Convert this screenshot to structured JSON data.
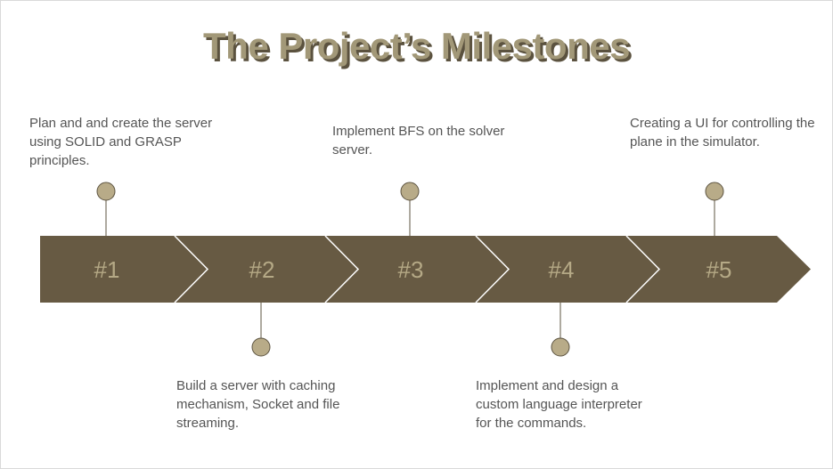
{
  "title": "The Project’s Milestones",
  "colors": {
    "arrow_fill": "#675a43",
    "separator": "#ffffff",
    "step_number": "#b5a986",
    "dot_fill": "#b8ab88",
    "dot_stroke": "#5e5542",
    "connector": "#5e5542",
    "title_fill": "#a29878",
    "title_shadow": "#5b523f"
  },
  "milestones": [
    {
      "number": "#1",
      "description": "Plan and and create the server using SOLID and GRASP principles."
    },
    {
      "number": "#2",
      "description": "Build a server with caching mechanism, Socket and file streaming."
    },
    {
      "number": "#3",
      "description": "Implement BFS on the solver server."
    },
    {
      "number": "#4",
      "description": "Implement and design  a custom language interpreter for the commands."
    },
    {
      "number": "#5",
      "description": "Creating a UI for controlling the plane in the simulator."
    }
  ]
}
